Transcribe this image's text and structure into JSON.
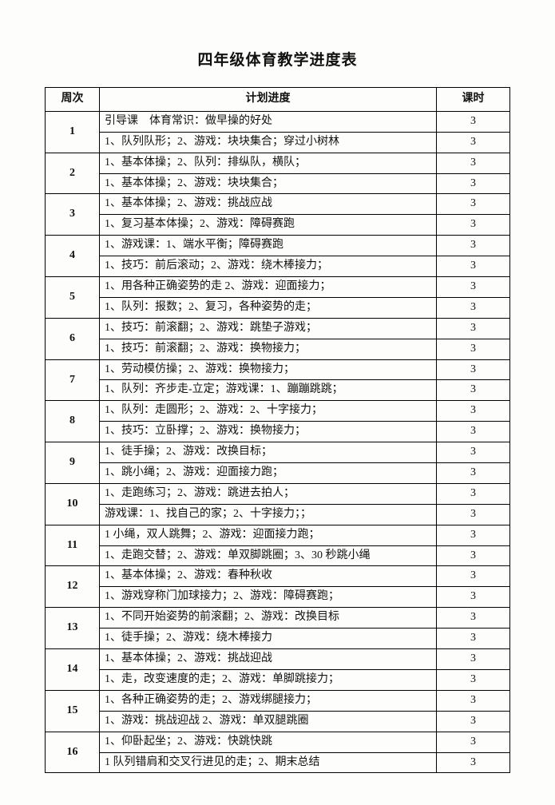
{
  "title": "四年级体育教学进度表",
  "headers": {
    "week": "周次",
    "plan": "计划进度",
    "hours": "课时"
  },
  "colWidths": {
    "week": "68px",
    "plan": "auto",
    "hours": "92px"
  },
  "weeks": [
    {
      "num": "1",
      "rows": [
        {
          "plan": "引导课　体育常识：做早操的好处",
          "hours": "3"
        },
        {
          "plan": "1、队列队形；2、游戏：块块集合；穿过小树林",
          "hours": "3"
        }
      ]
    },
    {
      "num": "2",
      "rows": [
        {
          "plan": "1、基本体操；2、队列：排纵队，横队；",
          "hours": "3"
        },
        {
          "plan": "1、基本体操；2、游戏：块块集合；",
          "hours": "3"
        }
      ]
    },
    {
      "num": "3",
      "rows": [
        {
          "plan": "1、基本体操；2、游戏：挑战应战",
          "hours": "3"
        },
        {
          "plan": "1、复习基本体操；2、游戏：障碍赛跑",
          "hours": "3"
        }
      ]
    },
    {
      "num": "4",
      "rows": [
        {
          "plan": "1、游戏课：1、端水平衡；障碍赛跑",
          "hours": "3"
        },
        {
          "plan": "1、技巧：前后滚动；2、游戏：绕木棒接力；",
          "hours": "3"
        }
      ]
    },
    {
      "num": "5",
      "rows": [
        {
          "plan": "1、用各种正确姿势的走 2、游戏：迎面接力；",
          "hours": "3"
        },
        {
          "plan": "1、队列：报数；2、复习，各种姿势的走；",
          "hours": "3"
        }
      ]
    },
    {
      "num": "6",
      "rows": [
        {
          "plan": "1、技巧：前滚翻；2、游戏：跳垫子游戏；",
          "hours": "3"
        },
        {
          "plan": "1、技巧：前滚翻；2、游戏：换物接力；",
          "hours": "3"
        }
      ]
    },
    {
      "num": "7",
      "rows": [
        {
          "plan": "1、劳动模仿操；2、游戏：换物接力；",
          "hours": "3"
        },
        {
          "plan": "1、队列：齐步走-立定；游戏课：1、蹦蹦跳跳；",
          "hours": "3"
        }
      ]
    },
    {
      "num": "8",
      "rows": [
        {
          "plan": "1、队列：走圆形；2、游戏：2、十字接力；",
          "hours": "3"
        },
        {
          "plan": "1、技巧：立卧撑；2、游戏：换物接力；",
          "hours": "3"
        }
      ]
    },
    {
      "num": "9",
      "rows": [
        {
          "plan": "1、徒手操；2、游戏：改换目标；",
          "hours": "3"
        },
        {
          "plan": "1、跳小绳；2、游戏：迎面接力跑；",
          "hours": "3"
        }
      ]
    },
    {
      "num": "10",
      "rows": [
        {
          "plan": "1、走跑练习；2、游戏：跳进去拍人；",
          "hours": "3"
        },
        {
          "plan": "游戏课：1、找自己的家；2、十字接力；；",
          "hours": "3"
        }
      ]
    },
    {
      "num": "11",
      "rows": [
        {
          "plan": "1 小绳，双人跳舞；2、游戏：迎面接力跑；",
          "hours": "3"
        },
        {
          "plan": "1、走跑交替；2、游戏：单双脚跳圈；3、30 秒跳小绳",
          "hours": "3"
        }
      ]
    },
    {
      "num": "12",
      "rows": [
        {
          "plan": "1、基本体操；2、游戏：春种秋收",
          "hours": "3"
        },
        {
          "plan": "1、游戏穿称门加球接力；2、游戏：障碍赛跑；",
          "hours": "3"
        }
      ]
    },
    {
      "num": "13",
      "rows": [
        {
          "plan": "1、不同开始姿势的前滚翻；2、游戏：改换目标",
          "hours": "3"
        },
        {
          "plan": "1、徒手操；2、游戏：绕木棒接力",
          "hours": "3"
        }
      ]
    },
    {
      "num": "14",
      "rows": [
        {
          "plan": "1、基本体操；2、游戏：挑战迎战",
          "hours": "3"
        },
        {
          "plan": "1、走，改变速度的走；2、游戏：单脚跳接力；",
          "hours": "3"
        }
      ]
    },
    {
      "num": "15",
      "rows": [
        {
          "plan": "1、各种正确姿势的走；2、游戏绑腿接力；",
          "hours": "3"
        },
        {
          "plan": "1、游戏：挑战迎战 2、游戏：单双腿跳圈",
          "hours": "3"
        }
      ]
    },
    {
      "num": "16",
      "rows": [
        {
          "plan": "1、仰卧起坐；2、游戏：快跳快跳",
          "hours": "3"
        },
        {
          "plan": "1 队列错肩和交叉行进见的走；2、期末总结",
          "hours": "3"
        }
      ]
    }
  ]
}
